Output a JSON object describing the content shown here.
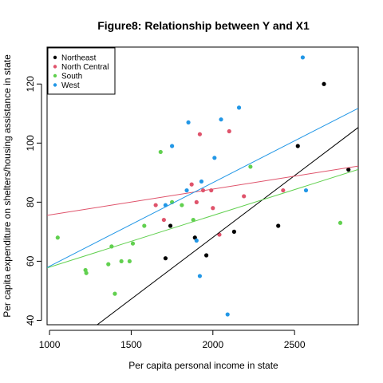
{
  "chart_data": {
    "type": "scatter",
    "title": "Figure8: Relationship between Y and X1",
    "xlabel": "Per capita personal income in state",
    "ylabel": "Per capita expenditure on shelters/housing assistance in state",
    "xlim": [
      985,
      2890
    ],
    "ylim": [
      38.5,
      132.5
    ],
    "xticks": [
      1000,
      1500,
      2000,
      2500
    ],
    "yticks": [
      40,
      60,
      80,
      100,
      120
    ],
    "grid": false,
    "legend_position": "top-left",
    "series": [
      {
        "name": "Northeast",
        "color": "#000000",
        "x": [
          1710,
          1740,
          1890,
          1960,
          2130,
          2400,
          2520,
          2680,
          2830
        ],
        "y": [
          61,
          72,
          68,
          62,
          70,
          72,
          99,
          120,
          91
        ],
        "fit": {
          "intercept": -15.5,
          "slope": 0.0418
        }
      },
      {
        "name": "North Central",
        "color": "#DF536B",
        "x": [
          1650,
          1700,
          1870,
          1900,
          1920,
          1940,
          1990,
          2000,
          2040,
          2100,
          2190,
          2430
        ],
        "y": [
          79,
          74,
          86,
          80,
          103,
          84,
          84,
          78,
          69,
          104,
          82,
          84
        ],
        "fit": {
          "intercept": 66.9,
          "slope": 0.00876
        }
      },
      {
        "name": "South",
        "color": "#61D04F",
        "x": [
          1050,
          1220,
          1225,
          1360,
          1380,
          1400,
          1440,
          1490,
          1510,
          1580,
          1680,
          1750,
          1810,
          1880,
          2230,
          2780
        ],
        "y": [
          68,
          57,
          56,
          59,
          65,
          49,
          60,
          60,
          66,
          72,
          97,
          80,
          79,
          74,
          92,
          73
        ],
        "fit": {
          "intercept": 40.5,
          "slope": 0.0175
        }
      },
      {
        "name": "West",
        "color": "#2297E6",
        "x": [
          1710,
          1750,
          1840,
          1850,
          1900,
          1920,
          1930,
          2010,
          2050,
          2090,
          2160,
          2550,
          2570
        ],
        "y": [
          79,
          99,
          84,
          107,
          67,
          55,
          87,
          95,
          108,
          42,
          112,
          129,
          84
        ],
        "fit": {
          "intercept": 30.0,
          "slope": 0.0283
        }
      }
    ]
  }
}
